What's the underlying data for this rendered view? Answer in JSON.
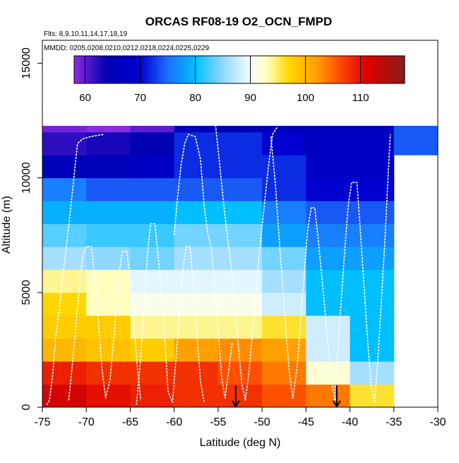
{
  "chart_data": {
    "type": "heatmap",
    "title": "ORCAS RF08-19 O2_OCN_FMPD",
    "flights_note": "Flts: 8,9,10,11,14,17,18,19",
    "dates_note": "MMDD: 0205,0208,0210,0212,0218,0224,0225,0229",
    "xlabel": "Latitude (deg N)",
    "ylabel": "Altitude (m)",
    "xlim": [
      -75,
      -30
    ],
    "ylim": [
      0,
      16000
    ],
    "x_ticks": [
      -75,
      -70,
      -65,
      -60,
      -55,
      -50,
      -45,
      -40,
      -35,
      -30
    ],
    "x_tick_labels": [
      "-75",
      "-70",
      "-65",
      "-60",
      "-55",
      "-50",
      "-45",
      "-40",
      "-35",
      "-30"
    ],
    "y_ticks": [
      0,
      5000,
      10000,
      15000
    ],
    "y_tick_labels": [
      "0",
      "5000",
      "10000",
      "15000"
    ],
    "colorbar": {
      "range": [
        58,
        118
      ],
      "ticks": [
        60,
        70,
        80,
        90,
        100,
        110
      ],
      "tick_labels": [
        "60",
        "70",
        "80",
        "90",
        "100",
        "110"
      ],
      "stops": [
        {
          "v": 58,
          "c": "#8a2be2"
        },
        {
          "v": 64,
          "c": "#0000b0"
        },
        {
          "v": 70,
          "c": "#0000d0"
        },
        {
          "v": 75,
          "c": "#1e6fff"
        },
        {
          "v": 80,
          "c": "#00bfff"
        },
        {
          "v": 85,
          "c": "#8fd8ff"
        },
        {
          "v": 90,
          "c": "#f8fcff"
        },
        {
          "v": 93,
          "c": "#ffffc0"
        },
        {
          "v": 97,
          "c": "#ffd700"
        },
        {
          "v": 102,
          "c": "#ffa000"
        },
        {
          "v": 106,
          "c": "#ff5000"
        },
        {
          "v": 111,
          "c": "#e00000"
        },
        {
          "v": 118,
          "c": "#8b1a1a"
        }
      ]
    },
    "lat_edges": [
      -75,
      -70,
      -65,
      -60,
      -55,
      -50,
      -45,
      -40,
      -35,
      -30
    ],
    "alt_bin_size": 1000,
    "grid_values": [
      [
        112,
        110,
        109,
        108,
        108,
        106,
        104,
        96,
        null
      ],
      [
        109,
        108,
        108,
        108,
        106,
        104,
        92,
        86,
        null
      ],
      [
        100,
        99,
        98,
        102,
        103,
        102,
        88,
        80,
        null
      ],
      [
        98,
        98,
        94,
        94,
        94,
        96,
        88,
        80,
        null
      ],
      [
        97,
        93,
        91,
        91,
        91,
        88,
        80,
        80,
        null
      ],
      [
        94,
        93,
        89,
        89,
        89,
        86,
        80,
        80,
        null
      ],
      [
        86,
        85,
        84,
        86,
        86,
        84,
        78,
        78,
        null
      ],
      [
        83,
        82,
        82,
        84,
        84,
        78,
        76,
        76,
        null
      ],
      [
        79,
        79,
        79,
        80,
        80,
        76,
        74,
        74,
        null
      ],
      [
        76,
        74,
        74,
        74,
        74,
        72,
        70,
        70,
        null
      ],
      [
        66,
        66,
        68,
        72,
        72,
        72,
        68,
        68,
        null
      ],
      [
        62,
        63,
        64,
        72,
        72,
        70,
        67,
        67,
        74
      ],
      [
        59,
        58,
        60,
        66,
        64,
        66,
        66,
        66,
        74
      ]
    ],
    "flight_tracks": [
      [
        [
          -74.5,
          100
        ],
        [
          -74.2,
          300
        ],
        [
          -73.8,
          1500
        ],
        [
          -73.5,
          3000
        ],
        [
          -73.0,
          4500
        ],
        [
          -72.6,
          6000
        ],
        [
          -72.2,
          7200
        ],
        [
          -71.8,
          8600
        ],
        [
          -71.3,
          10400
        ],
        [
          -71.0,
          11500
        ],
        [
          -70.4,
          11700
        ],
        [
          -69.5,
          11800
        ],
        [
          -68.0,
          11900
        ]
      ],
      [
        [
          -72.0,
          300
        ],
        [
          -71.6,
          1800
        ],
        [
          -71.2,
          3500
        ],
        [
          -70.8,
          5200
        ],
        [
          -70.4,
          6600
        ],
        [
          -70.0,
          7000
        ],
        [
          -69.4,
          7000
        ],
        [
          -69.0,
          5400
        ],
        [
          -68.6,
          3600
        ],
        [
          -68.2,
          1600
        ],
        [
          -67.8,
          400
        ],
        [
          -67.3,
          1200
        ],
        [
          -66.9,
          2900
        ],
        [
          -66.5,
          4600
        ],
        [
          -66.2,
          6000
        ],
        [
          -65.9,
          6800
        ],
        [
          -65.4,
          6800
        ],
        [
          -65.0,
          5600
        ],
        [
          -64.6,
          3800
        ],
        [
          -64.2,
          1800
        ],
        [
          -63.8,
          300
        ]
      ],
      [
        [
          -64.3,
          100
        ],
        [
          -63.9,
          1700
        ],
        [
          -63.6,
          3400
        ],
        [
          -63.3,
          5200
        ],
        [
          -63.0,
          6800
        ],
        [
          -62.7,
          8000
        ],
        [
          -62.2,
          8000
        ],
        [
          -61.8,
          6500
        ],
        [
          -61.4,
          4600
        ],
        [
          -61.0,
          2600
        ],
        [
          -60.7,
          700
        ],
        [
          -60.2,
          200
        ],
        [
          -59.8,
          2100
        ],
        [
          -59.4,
          4100
        ],
        [
          -59.0,
          6100
        ],
        [
          -58.6,
          7000
        ],
        [
          -58.2,
          7000
        ],
        [
          -57.8,
          5300
        ],
        [
          -57.4,
          3100
        ],
        [
          -57.0,
          1100
        ],
        [
          -56.6,
          200
        ]
      ],
      [
        [
          -60.0,
          7500
        ],
        [
          -59.6,
          9200
        ],
        [
          -59.2,
          10600
        ],
        [
          -58.8,
          11500
        ],
        [
          -58.4,
          11900
        ],
        [
          -57.6,
          11800
        ],
        [
          -57.0,
          10800
        ],
        [
          -56.6,
          8800
        ],
        [
          -56.2,
          7600
        ],
        [
          -55.8,
          7000
        ],
        [
          -55.4,
          5400
        ],
        [
          -55.0,
          3400
        ],
        [
          -54.6,
          1300
        ],
        [
          -54.2,
          400
        ],
        [
          -53.8,
          1600
        ],
        [
          -53.4,
          2800
        ]
      ],
      [
        [
          -55.3,
          12300
        ],
        [
          -54.8,
          10500
        ],
        [
          -54.3,
          8600
        ],
        [
          -53.9,
          7300
        ],
        [
          -53.5,
          6100
        ],
        [
          -53.1,
          4500
        ],
        [
          -52.7,
          2700
        ],
        [
          -52.3,
          1000
        ],
        [
          -51.9,
          300
        ],
        [
          -51.5,
          1500
        ],
        [
          -51.1,
          3200
        ],
        [
          -50.7,
          5000
        ],
        [
          -50.3,
          6800
        ],
        [
          -49.8,
          8600
        ],
        [
          -49.3,
          10400
        ],
        [
          -48.8,
          11900
        ],
        [
          -48.3,
          12200
        ]
      ],
      [
        [
          -49.0,
          11800
        ],
        [
          -48.5,
          9800
        ],
        [
          -48.1,
          7600
        ],
        [
          -47.7,
          5500
        ],
        [
          -47.3,
          3400
        ],
        [
          -46.9,
          1500
        ],
        [
          -46.5,
          400
        ],
        [
          -46.0,
          1800
        ],
        [
          -45.6,
          3800
        ],
        [
          -45.2,
          5800
        ],
        [
          -44.8,
          7800
        ],
        [
          -44.4,
          8700
        ],
        [
          -44.0,
          8700
        ],
        [
          -43.5,
          6900
        ],
        [
          -43.0,
          4900
        ],
        [
          -42.5,
          2800
        ],
        [
          -42.0,
          900
        ],
        [
          -41.6,
          300
        ]
      ],
      [
        [
          -41.8,
          300
        ],
        [
          -41.4,
          2400
        ],
        [
          -41.0,
          4600
        ],
        [
          -40.6,
          6800
        ],
        [
          -40.2,
          8800
        ],
        [
          -39.8,
          9800
        ],
        [
          -39.2,
          9800
        ],
        [
          -38.8,
          7600
        ],
        [
          -38.4,
          5300
        ],
        [
          -38.0,
          3000
        ],
        [
          -37.6,
          1000
        ],
        [
          -37.2,
          200
        ],
        [
          -36.8,
          2200
        ],
        [
          -36.4,
          4800
        ],
        [
          -36.0,
          7400
        ],
        [
          -35.7,
          9800
        ],
        [
          -35.4,
          11900
        ]
      ]
    ],
    "annotations": [
      {
        "label": "arrow",
        "lat": -53.0,
        "alt_top": 700,
        "alt_bottom": 0
      },
      {
        "label": "arrow",
        "lat": -41.5,
        "alt_top": 700,
        "alt_bottom": 0
      }
    ]
  }
}
